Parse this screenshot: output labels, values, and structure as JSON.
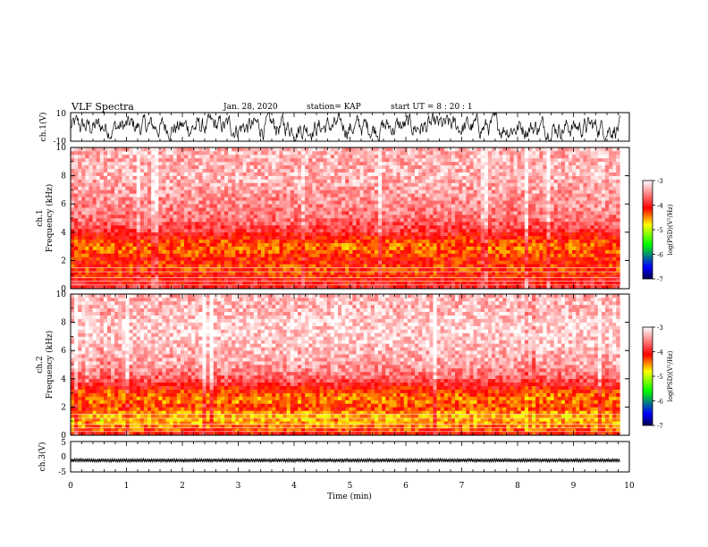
{
  "header": {
    "title": "VLF Spectra",
    "date": "Jan. 28, 2020",
    "station": "station= KAP",
    "start": "start  UT  =   8  : 20 : 1"
  },
  "chart_data": [
    {
      "type": "line",
      "panel": "ch1-waveform",
      "ylabel": "ch.1(V)",
      "ylim": [
        -10,
        10
      ],
      "yticks": [
        "10",
        "-10"
      ],
      "xlim": [
        0,
        10
      ],
      "data_end": 9.83,
      "description_values": {
        "center": 0,
        "amplitude": 7
      }
    },
    {
      "type": "heatmap",
      "panel": "ch1-spectrogram",
      "ylabel": "ch.1",
      "ylabel2": "Frequency  (kHz)",
      "ylim": [
        0,
        10
      ],
      "yticks": [
        "0",
        "2",
        "4",
        "6",
        "8",
        "10"
      ],
      "xlim": [
        0,
        10
      ],
      "data_end": 9.83,
      "colorbar": {
        "label": "log(PSD)(V²/Hz)",
        "range": [
          -7,
          -3
        ],
        "ticks": [
          "-3",
          "-4",
          "-5",
          "-6",
          "-7"
        ]
      },
      "profile_freq_khz": [
        0,
        0.5,
        1.0,
        1.5,
        2.0,
        2.5,
        3.0,
        3.5,
        4.0,
        5.0,
        6.0,
        7.0,
        8.0,
        9.0,
        10.0
      ],
      "profile_log_psd": [
        -3.9,
        -4.0,
        -4.2,
        -4.3,
        -4.1,
        -4.3,
        -4.4,
        -4.2,
        -3.9,
        -3.6,
        -3.5,
        -3.4,
        -3.3,
        -3.35,
        -3.3
      ]
    },
    {
      "type": "heatmap",
      "panel": "ch2-spectrogram",
      "ylabel": "ch.2",
      "ylabel2": "Frequency  (kHz)",
      "ylim": [
        0,
        10
      ],
      "yticks": [
        "0",
        "2",
        "4",
        "6",
        "8",
        "10"
      ],
      "xlim": [
        0,
        10
      ],
      "data_end": 9.83,
      "colorbar": {
        "label": "log(PSD)(V²/Hz)",
        "range": [
          -7,
          -3
        ],
        "ticks": [
          "-3",
          "-4",
          "-5",
          "-6",
          "-7"
        ]
      },
      "profile_freq_khz": [
        0,
        0.5,
        1.0,
        1.5,
        2.0,
        2.5,
        3.0,
        3.5,
        4.0,
        5.0,
        6.0,
        7.0,
        8.0,
        9.0,
        10.0
      ],
      "profile_log_psd": [
        -4.0,
        -4.4,
        -4.6,
        -4.6,
        -4.2,
        -4.5,
        -4.3,
        -4.0,
        -3.7,
        -3.4,
        -3.3,
        -3.2,
        -3.2,
        -3.3,
        -3.3
      ]
    },
    {
      "type": "line",
      "panel": "ch3-waveform",
      "ylabel": "ch.3(V)",
      "ylim": [
        -5,
        5
      ],
      "yticks": [
        "5",
        "0",
        "-5"
      ],
      "xlim": [
        0,
        10
      ],
      "data_end": 9.83,
      "description_values": {
        "center": -1.2,
        "amplitude": 0.6
      }
    }
  ],
  "xaxis": {
    "label": "Time  (min)",
    "ticks": [
      "0",
      "1",
      "2",
      "3",
      "4",
      "5",
      "6",
      "7",
      "8",
      "9",
      "10"
    ]
  },
  "colors": {
    "white": "#ffffff",
    "red": "#ff0000",
    "yellow": "#ffff00",
    "green": "#00ff00",
    "blue": "#0000ff",
    "navy": "#000060"
  }
}
